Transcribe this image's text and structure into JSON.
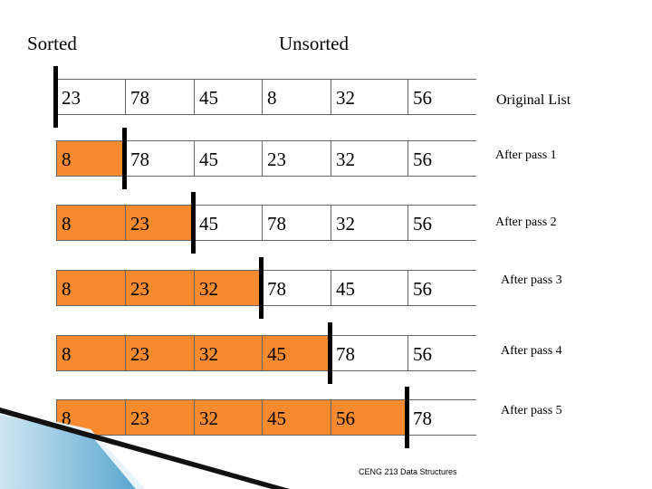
{
  "headers": {
    "sorted": "Sorted",
    "unsorted": "Unsorted"
  },
  "rows": [
    {
      "label": "Original List",
      "values": [
        "23",
        "78",
        "45",
        "8",
        "32",
        "56"
      ],
      "sorted_count": 0
    },
    {
      "label": "After pass 1",
      "values": [
        "8",
        "78",
        "45",
        "23",
        "32",
        "56"
      ],
      "sorted_count": 1
    },
    {
      "label": "After pass 2",
      "values": [
        "8",
        "23",
        "45",
        "78",
        "32",
        "56"
      ],
      "sorted_count": 2
    },
    {
      "label": "After pass 3",
      "values": [
        "8",
        "23",
        "32",
        "78",
        "45",
        "56"
      ],
      "sorted_count": 3
    },
    {
      "label": "After pass 4",
      "values": [
        "8",
        "23",
        "32",
        "45",
        "78",
        "56"
      ],
      "sorted_count": 4
    },
    {
      "label": "After pass 5",
      "values": [
        "8",
        "23",
        "32",
        "45",
        "56",
        "78"
      ],
      "sorted_count": 5
    }
  ],
  "footer": "CENG 213 Data Structures",
  "colors": {
    "sorted_fill": "#f58a2e",
    "unsorted_fill": "#ffffff",
    "divider": "#000000"
  }
}
